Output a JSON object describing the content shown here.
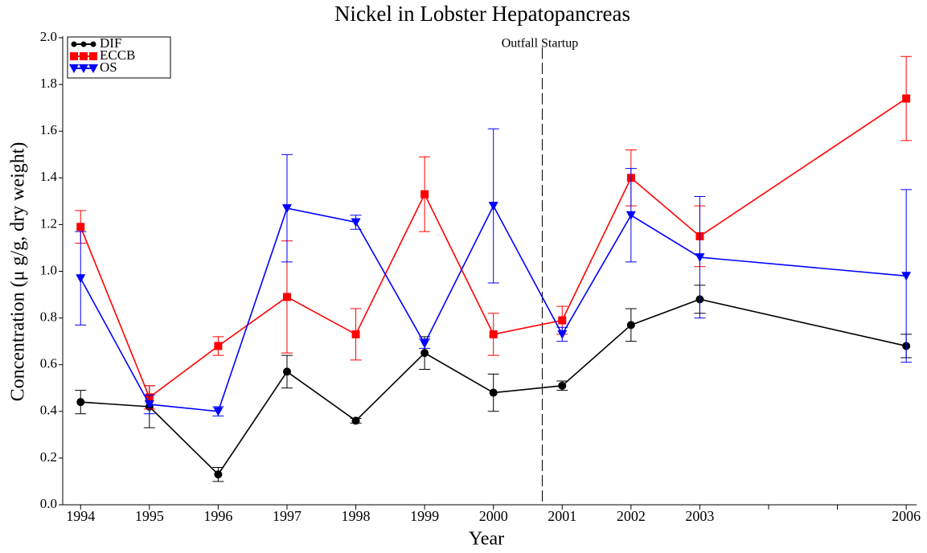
{
  "chart_data": {
    "type": "line",
    "title": "Nickel in Lobster Hepatopancreas",
    "x_label": "Year",
    "y_label": "Concentration (μ g/g, dry weight)",
    "x": [
      1994,
      1995,
      1996,
      1997,
      1998,
      1999,
      2000,
      2001,
      2002,
      2003,
      2006
    ],
    "xlim": [
      1993.74,
      2006.15
    ],
    "xticks": [
      1994,
      1995,
      1996,
      1997,
      1998,
      1999,
      2000,
      2001,
      2002,
      2003,
      2006
    ],
    "x_minor_ticks": [
      2004,
      2005
    ],
    "ylim": [
      0,
      2
    ],
    "yticks": [
      {
        "value": 0,
        "label": "0.0"
      },
      0.2,
      0.4,
      0.6,
      0.8,
      {
        "value": 1,
        "label": "1.0"
      },
      1.2,
      1.4,
      1.6,
      1.8,
      {
        "value": 2,
        "label": "2.0"
      }
    ],
    "legend": "upper left",
    "annotation": {
      "text": "Outfall Startup",
      "x": 2000.71
    },
    "series": [
      {
        "name": "DIF",
        "color": "#000000",
        "marker": "circle",
        "values": [
          0.44,
          0.42,
          0.13,
          0.57,
          0.36,
          0.65,
          0.48,
          0.51,
          0.77,
          0.88,
          0.68
        ],
        "errors": [
          0.05,
          0.09,
          0.03,
          0.07,
          0.01,
          0.07,
          0.08,
          0.02,
          0.07,
          0.06,
          0.05
        ]
      },
      {
        "name": "ECCB",
        "color": "#ff0000",
        "marker": "square",
        "values": [
          1.19,
          0.46,
          0.68,
          0.89,
          0.73,
          1.33,
          0.73,
          0.79,
          1.4,
          1.15,
          1.74
        ],
        "errors": [
          0.07,
          0.05,
          0.04,
          0.24,
          0.11,
          0.16,
          0.09,
          0.06,
          0.12,
          0.13,
          0.18
        ]
      },
      {
        "name": "OS",
        "color": "#0000ff",
        "marker": "triangle-down",
        "values": [
          0.97,
          0.43,
          0.4,
          1.27,
          1.21,
          0.69,
          1.28,
          0.73,
          1.24,
          1.06,
          0.98
        ],
        "errors": [
          0.2,
          0.04,
          0.02,
          0.23,
          0.03,
          0.02,
          0.33,
          0.03,
          0.2,
          0.26,
          0.37
        ]
      }
    ]
  }
}
